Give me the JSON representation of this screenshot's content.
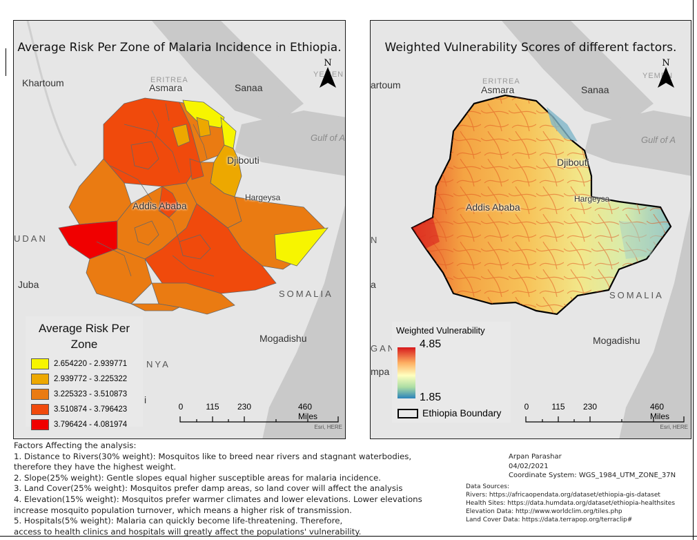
{
  "left_map": {
    "title": "Average Risk Per Zone of Malaria Incidence in Ethiopia.",
    "places": {
      "khartoum": "Khartoum",
      "asmara": "Asmara",
      "eritrea": "ERITREA",
      "sanaa": "Sanaa",
      "yemen": "YEMEN",
      "gulf": "Gulf of A",
      "djibouti": "Djibouti",
      "hargeysa": "Hargeysa",
      "addis": "Addis Ababa",
      "sudan": "UDAN",
      "juba": "Juba",
      "somalia": "SOMALIA",
      "mogadishu": "Mogadishu",
      "kenya": "NYA",
      "nairobi": "i"
    },
    "legend": {
      "title": "Average Risk Per Zone",
      "classes": [
        {
          "range": "2.654220 - 2.939771",
          "color": "#f7f500"
        },
        {
          "range": "2.939772 - 3.225322",
          "color": "#eda800"
        },
        {
          "range": "3.225323 - 3.510873",
          "color": "#ea7b12"
        },
        {
          "range": "3.510874 - 3.796423",
          "color": "#f04a0c"
        },
        {
          "range": "3.796424 - 4.081974",
          "color": "#f00000"
        }
      ]
    },
    "scalebar": {
      "ticks": [
        "0",
        "115",
        "230",
        "460 Miles"
      ],
      "credit": "Esri, HERE"
    },
    "north_label": "N"
  },
  "right_map": {
    "title": "Weighted Vulnerability Scores of different factors.",
    "places": {
      "khartoum": "artoum",
      "asmara": "Asmara",
      "eritrea": "ERITREA",
      "sanaa": "Sanaa",
      "yemen": "YEMEN",
      "gulf": "Gulf of A",
      "djibouti": "Djibouti",
      "hargeysa": "Hargeysa",
      "addis": "Addis Ababa",
      "sudan": "N",
      "juba": "a",
      "somalia": "SOMALIA",
      "mogadishu": "Mogadishu",
      "uganda": "GAN",
      "kampala": "mpa"
    },
    "legend": {
      "title": "Weighted Vulnerability",
      "high": "4.85",
      "low": "1.85",
      "boundary_label": "Ethiopia Boundary",
      "ramp_colors": [
        "#d7191c",
        "#fdae61",
        "#ffffbf",
        "#abdda4",
        "#2b83ba"
      ]
    },
    "scalebar": {
      "ticks": [
        "0",
        "115",
        "230",
        "460 Miles"
      ],
      "credit": "Esri, HERE"
    },
    "north_label": "N"
  },
  "notes": {
    "factors_heading": "Factors Affecting the analysis:",
    "factors": [
      "1. Distance to Rivers(30% weight): Mosquitos like to breed near rivers and stagnant waterbodies,",
      "therefore they have the highest weight.",
      "2. Slope(25% weight): Gentle slopes equal higher susceptible areas for malaria incidence.",
      "3. Land Cover(25% weight): Mosquitos prefer damp areas, so land cover will affect the analysis",
      "4. Elevation(15% weight):  Mosquitos prefer warmer climates and lower elevations. Lower elevations",
      "increase mosquito population turnover, which means a higher risk of transmission.",
      "5. Hospitals(5% weight): Malaria can quickly become life-threatening. Therefore,",
      "access to health clinics and hospitals will greatly affect the populations' vulnerability."
    ],
    "author": "Arpan Parashar",
    "date": "04/02/2021",
    "coordinate_system": "Coordinate System:  WGS_1984_UTM_ZONE_37N",
    "sources_heading": "Data Sources:",
    "sources": [
      "Rivers:  https://africaopendata.org/dataset/ethiopia-gis-dataset",
      "Health Sites: https://data.humdata.org/dataset/ethiopia-healthsites",
      "Elevation Data: http://www.worldclim.org/tiles.php",
      "Land Cover Data: https://data.terrapop.org/terraclip#"
    ]
  }
}
